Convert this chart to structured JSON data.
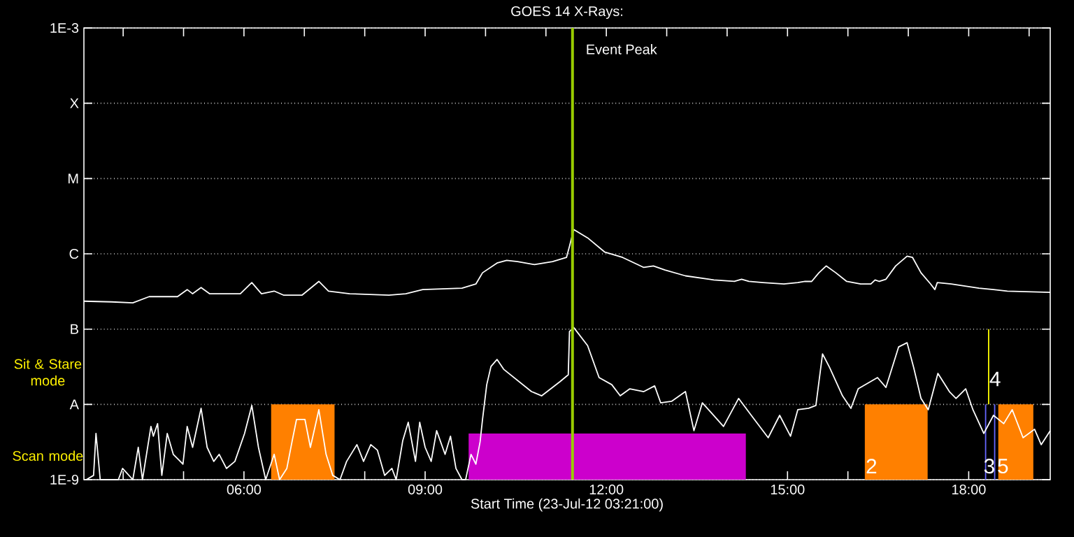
{
  "chart_data": {
    "type": "line",
    "title": "GOES 14 X-Rays:",
    "xlabel": "Start Time (23-Jul-12 03:21:00)",
    "xlim": [
      3.35,
      19.35
    ],
    "ylim": [
      1e-09,
      0.001
    ],
    "log": true,
    "grid": "y",
    "xticks": [
      {
        "value": 4,
        "label": null
      },
      {
        "value": 5,
        "label": null
      },
      {
        "value": 6,
        "label": "06:00"
      },
      {
        "value": 7,
        "label": null
      },
      {
        "value": 8,
        "label": null
      },
      {
        "value": 9,
        "label": "09:00"
      },
      {
        "value": 10,
        "label": null
      },
      {
        "value": 11,
        "label": null
      },
      {
        "value": 12,
        "label": "12:00"
      },
      {
        "value": 13,
        "label": null
      },
      {
        "value": 14,
        "label": null
      },
      {
        "value": 15,
        "label": "15:00"
      },
      {
        "value": 16,
        "label": null
      },
      {
        "value": 17,
        "label": null
      },
      {
        "value": 18,
        "label": "18:00"
      },
      {
        "value": 19,
        "label": null
      }
    ],
    "yticks": [
      {
        "value": 1e-09,
        "label": "1E-9"
      },
      {
        "value": 1e-08,
        "label": "A"
      },
      {
        "value": 1e-07,
        "label": "B"
      },
      {
        "value": 1e-06,
        "label": "C"
      },
      {
        "value": 1e-05,
        "label": "M"
      },
      {
        "value": 0.0001,
        "label": "X"
      },
      {
        "value": 0.001,
        "label": "1E-3"
      }
    ],
    "series": [
      {
        "type": "area",
        "color": "#ff8000",
        "x": [
          6.45,
          7.5
        ],
        "values": [
          1e-08,
          1e-08
        ]
      },
      {
        "type": "area",
        "color": "#cc00cc",
        "x": [
          9.72,
          14.31
        ],
        "values": [
          4.1e-09,
          4.1e-09
        ]
      },
      {
        "type": "area",
        "color": "#ff8000",
        "x": [
          16.28,
          17.32
        ],
        "values": [
          1e-08,
          1e-08
        ]
      },
      {
        "type": "area",
        "color": "#ff8000",
        "x": [
          18.49,
          19.07
        ],
        "values": [
          1e-08,
          1e-08
        ]
      },
      {
        "type": "line",
        "color": "#6666ff",
        "x": [
          18.28,
          18.28
        ],
        "values": [
          1e-09,
          1e-08
        ]
      },
      {
        "type": "line",
        "color": "#6666ff",
        "x": [
          18.43,
          18.43
        ],
        "values": [
          1e-09,
          1e-08
        ]
      },
      {
        "type": "line",
        "color": "#ffff00",
        "x": [
          18.33,
          18.33
        ],
        "values": [
          1e-08,
          1e-07
        ]
      },
      {
        "type": "line",
        "color": "#ffffff",
        "x": [
          3.35,
          3.81,
          4.16,
          4.43,
          4.9,
          5.06,
          5.15,
          5.29,
          5.43,
          5.78,
          5.94,
          6.13,
          6.29,
          6.5,
          6.66,
          6.96,
          7.24,
          7.4,
          7.75,
          8.4,
          8.68,
          8.96,
          9.61,
          9.84,
          9.95,
          10.19,
          10.35,
          10.53,
          10.81,
          11.11,
          11.34,
          11.39,
          11.46,
          11.69,
          11.97,
          12.27,
          12.62,
          12.78,
          12.97,
          13.31,
          13.78,
          14.12,
          14.24,
          14.36,
          14.59,
          14.94,
          15.17,
          15.29,
          15.4,
          15.52,
          15.64,
          15.8,
          15.98,
          16.21,
          16.38,
          16.45,
          16.52,
          16.63,
          16.79,
          16.98,
          17.07,
          17.21,
          17.37,
          17.44,
          17.48,
          17.71,
          18.17,
          18.41,
          18.64,
          19.35
        ],
        "values": [
          2.35e-07,
          2.3e-07,
          2.23e-07,
          2.7e-07,
          2.7e-07,
          3.35e-07,
          2.95e-07,
          3.57e-07,
          2.95e-07,
          2.95e-07,
          2.95e-07,
          4.15e-07,
          2.95e-07,
          3.2e-07,
          2.82e-07,
          2.82e-07,
          4.3e-07,
          3.2e-07,
          2.95e-07,
          2.82e-07,
          2.95e-07,
          3.35e-07,
          3.5e-07,
          3.97e-07,
          5.6e-07,
          7.55e-07,
          8.2e-07,
          7.9e-07,
          7.2e-07,
          7.9e-07,
          8.95e-07,
          1.26e-06,
          2.1e-06,
          1.63e-06,
          1.06e-06,
          8.95e-07,
          6.6e-07,
          6.9e-07,
          6.1e-07,
          5.1e-07,
          4.5e-07,
          4.3e-07,
          4.6e-07,
          4.3e-07,
          4.15e-07,
          3.97e-07,
          4.15e-07,
          4.3e-07,
          4.3e-07,
          5.6e-07,
          6.9e-07,
          5.6e-07,
          4.3e-07,
          3.97e-07,
          3.97e-07,
          4.5e-07,
          4.3e-07,
          4.6e-07,
          6.9e-07,
          9.3e-07,
          8.95e-07,
          5.6e-07,
          3.97e-07,
          3.35e-07,
          4.15e-07,
          3.97e-07,
          3.5e-07,
          3.35e-07,
          3.2e-07,
          3.08e-07
        ]
      },
      {
        "type": "line",
        "color": "#ffffff",
        "x": [
          3.39,
          3.51,
          3.55,
          3.62,
          3.92,
          3.99,
          4.16,
          4.25,
          4.32,
          4.46,
          4.5,
          4.57,
          4.64,
          4.73,
          4.83,
          4.99,
          5.06,
          5.15,
          5.29,
          5.39,
          5.5,
          5.59,
          5.71,
          5.85,
          6.01,
          6.13,
          6.24,
          6.36,
          6.5,
          6.59,
          6.71,
          6.8,
          6.87,
          7.01,
          7.1,
          7.24,
          7.36,
          7.47,
          7.59,
          7.7,
          7.87,
          7.98,
          8.1,
          8.21,
          8.33,
          8.45,
          8.52,
          8.63,
          8.72,
          8.84,
          8.91,
          9.0,
          9.1,
          9.19,
          9.33,
          9.42,
          9.51,
          9.61,
          9.67,
          9.76,
          9.84,
          9.91,
          9.95,
          10.02,
          10.09,
          10.19,
          10.3,
          10.76,
          10.93,
          11.23,
          11.37,
          11.39,
          11.46,
          11.69,
          11.88,
          12.09,
          12.23,
          12.39,
          12.62,
          12.8,
          12.9,
          13.08,
          13.31,
          13.45,
          13.59,
          13.94,
          14.19,
          14.4,
          14.68,
          14.87,
          15.05,
          15.17,
          15.35,
          15.47,
          15.58,
          15.7,
          15.91,
          16.05,
          16.17,
          16.49,
          16.63,
          16.84,
          16.98,
          17.09,
          17.21,
          17.33,
          17.49,
          17.68,
          17.79,
          17.95,
          18.07,
          18.25,
          18.41,
          18.58,
          18.72,
          18.9,
          19.09,
          19.2,
          19.35
        ],
        "values": [
          1e-09,
          1.14e-09,
          4.11e-09,
          1e-09,
          1e-09,
          1.41e-09,
          1e-09,
          2.69e-09,
          1e-09,
          5.09e-09,
          3.78e-09,
          5.55e-09,
          1.14e-09,
          4.11e-09,
          2.17e-09,
          1.61e-09,
          5.09e-09,
          2.69e-09,
          8.87e-09,
          2.69e-09,
          1.75e-09,
          2.17e-09,
          1.41e-09,
          1.75e-09,
          4.11e-09,
          9.66e-09,
          2.69e-09,
          1e-09,
          2.17e-09,
          1e-09,
          1.41e-09,
          3.32e-09,
          6.3e-09,
          6.3e-09,
          2.69e-09,
          8.5e-09,
          2.17e-09,
          1.14e-09,
          1e-09,
          1.75e-09,
          2.92e-09,
          1.75e-09,
          2.92e-09,
          2.46e-09,
          1.14e-09,
          1.41e-09,
          1e-09,
          3.32e-09,
          5.78e-09,
          1.75e-09,
          5.78e-09,
          2.69e-09,
          1.75e-09,
          4.48e-09,
          2.17e-09,
          3.78e-09,
          1.41e-09,
          1e-09,
          1e-09,
          2.17e-09,
          1.61e-09,
          3.18e-09,
          6.3e-09,
          1.83e-08,
          3.19e-08,
          3.95e-08,
          2.93e-08,
          1.48e-08,
          1.3e-08,
          2e-08,
          2.47e-08,
          9.3e-08,
          1.05e-07,
          6.05e-08,
          2.27e-08,
          1.83e-08,
          1.3e-08,
          1.61e-08,
          1.48e-08,
          1.76e-08,
          1.05e-08,
          1.1e-08,
          1.48e-08,
          4.48e-09,
          1.05e-08,
          5.09e-09,
          1.2e-08,
          7.16e-09,
          3.61e-09,
          7.16e-09,
          3.78e-09,
          8.5e-09,
          8.87e-09,
          9.66e-09,
          4.69e-08,
          3.06e-08,
          1.3e-08,
          8.87e-09,
          1.61e-08,
          2.27e-08,
          1.68e-08,
          5.81e-08,
          6.59e-08,
          3.06e-08,
          1.2e-08,
          8.5e-09,
          2.58e-08,
          1.48e-08,
          1.2e-08,
          1.61e-08,
          8.5e-09,
          4.11e-09,
          7.16e-09,
          5.55e-09,
          8.5e-09,
          3.61e-09,
          4.68e-09,
          2.92e-09,
          4.48e-09
        ]
      }
    ],
    "ref_lines": [
      {
        "axis": "x",
        "value": 11.44,
        "label": "Event Peak",
        "color": "#99cc00"
      }
    ],
    "annotations": [
      "Sit & Stare mode",
      "Scan mode",
      "2",
      "3",
      "5",
      "4"
    ]
  }
}
